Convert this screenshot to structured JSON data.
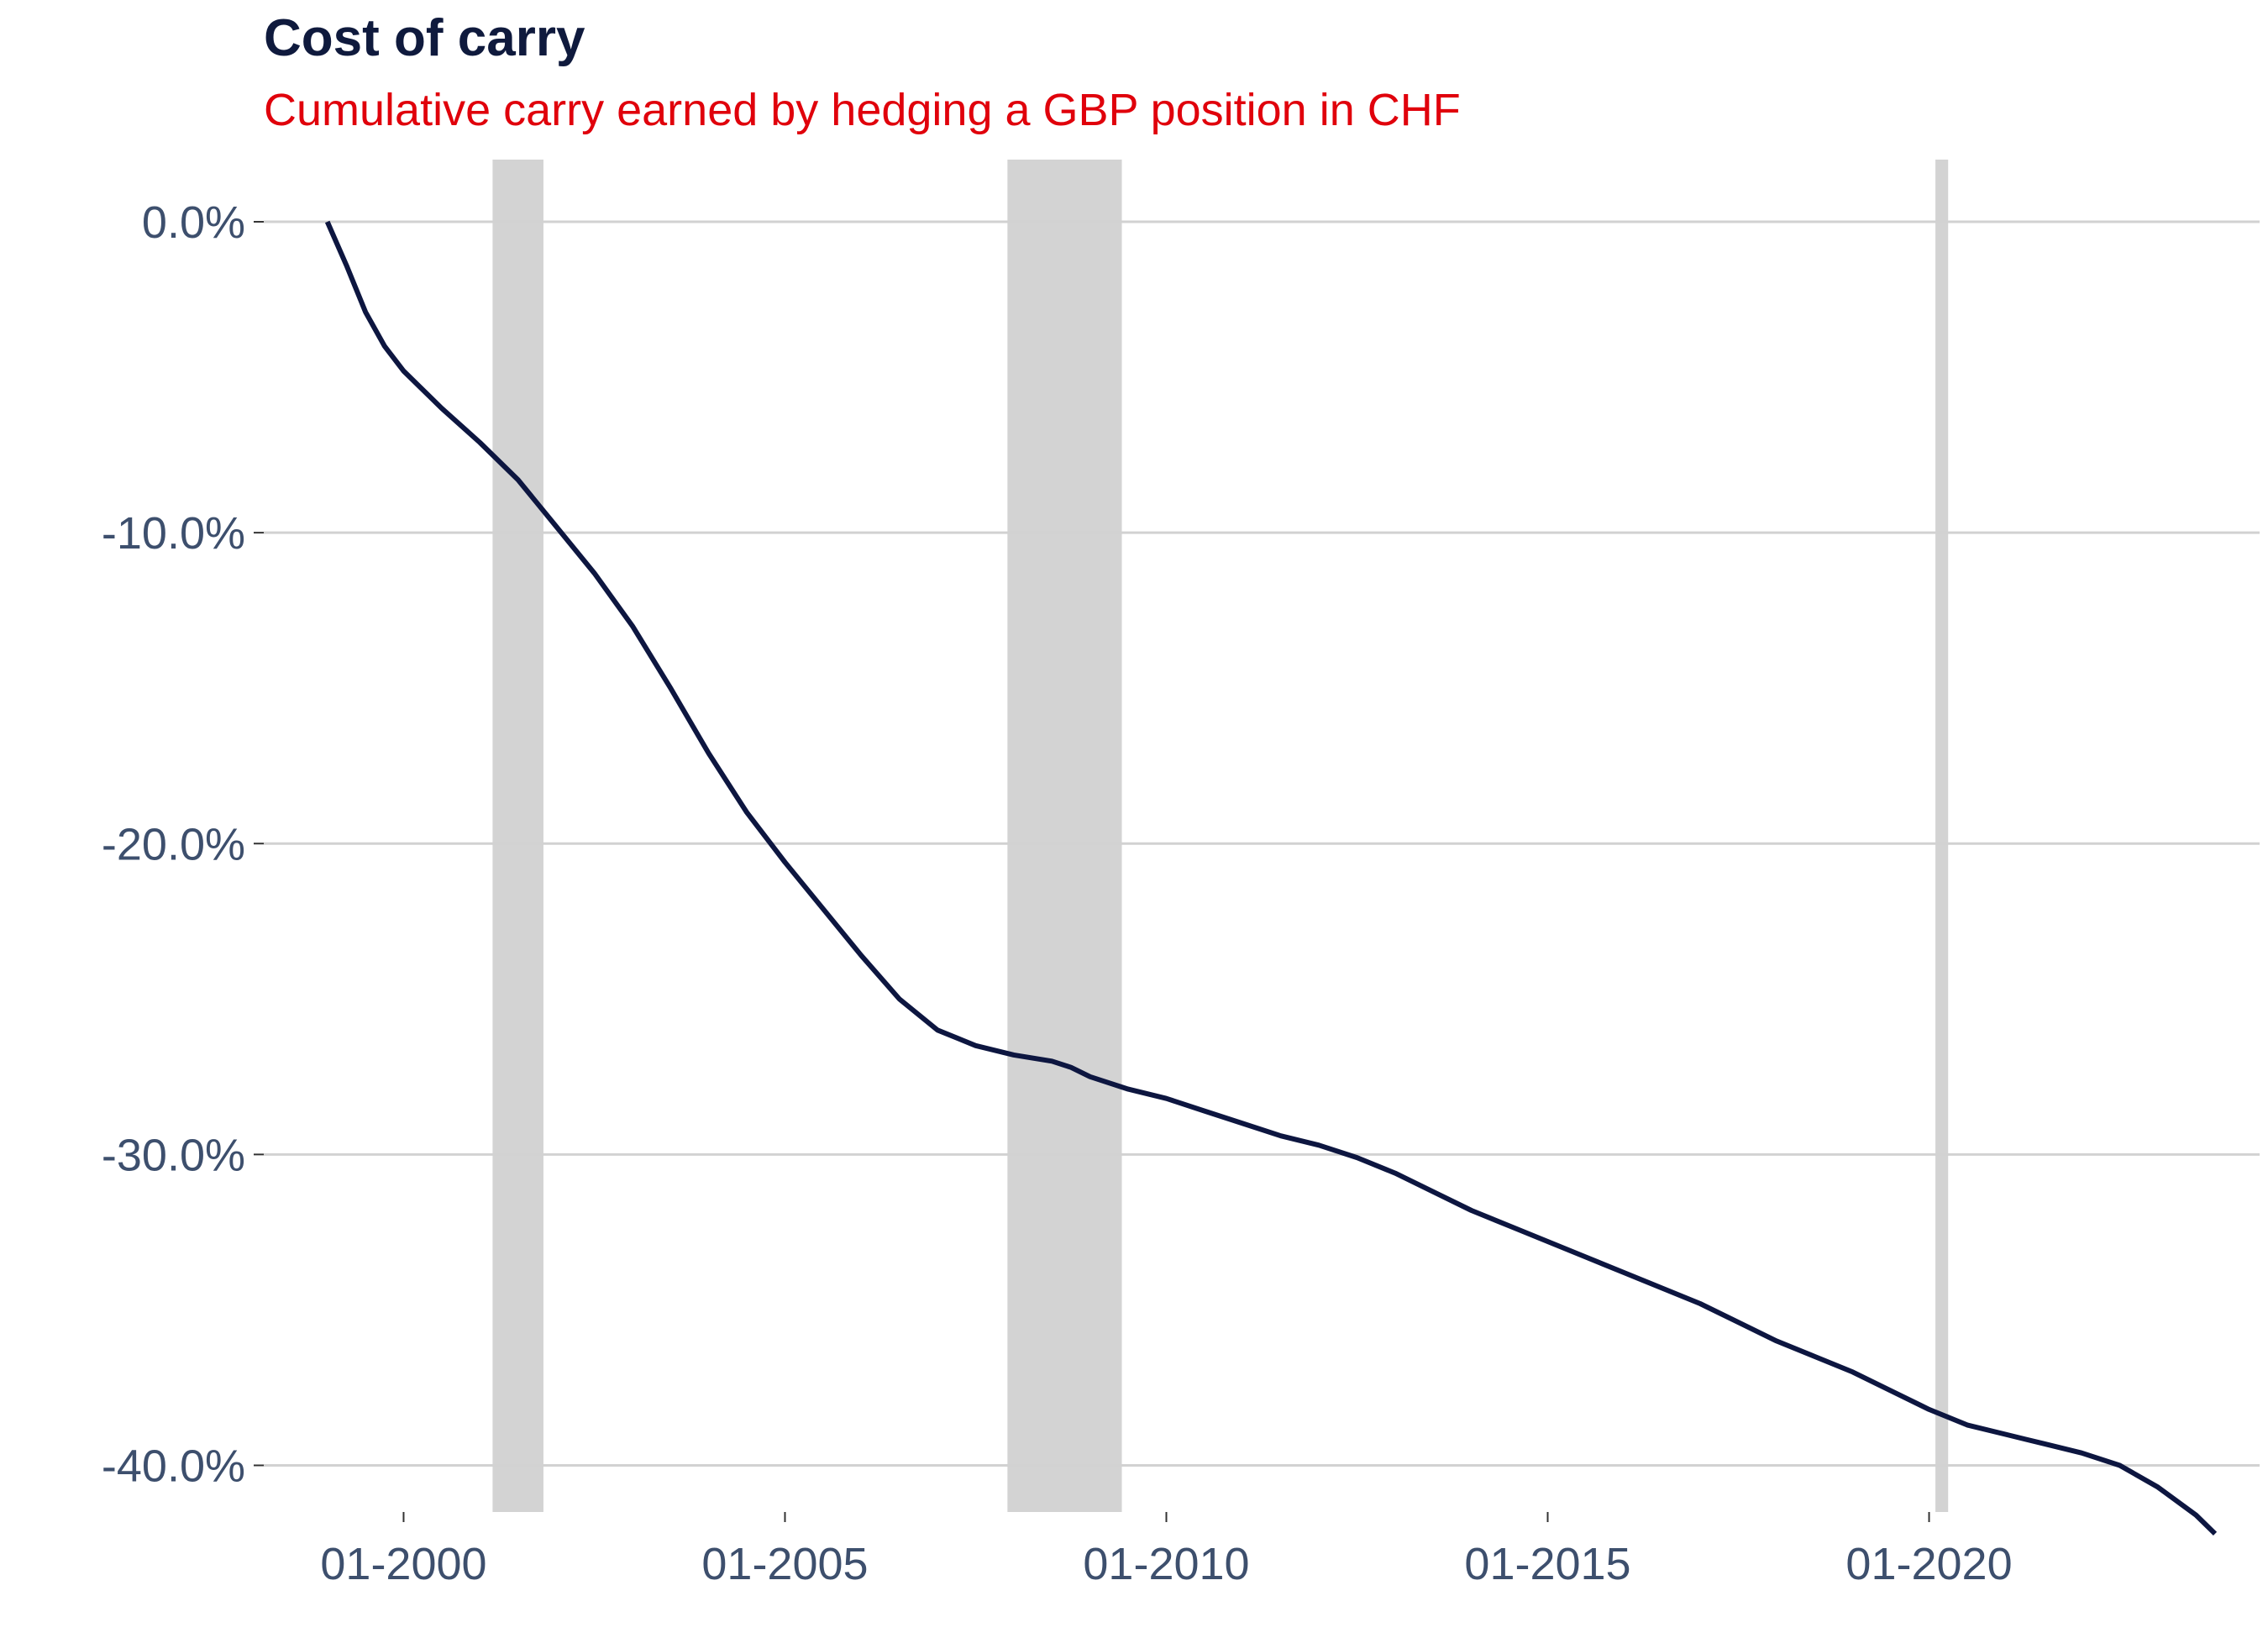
{
  "chart_data": {
    "type": "line",
    "title": "Cost of carry",
    "subtitle": "Cumulative carry earned by hedging a GBP position in CHF",
    "xlabel": "",
    "ylabel": "",
    "xlim": [
      "1998-03-01",
      "2024-05-01"
    ],
    "ylim": [
      -41.5,
      2.0
    ],
    "x_ticks": [
      {
        "date": "2000-01-01",
        "label": "01-2000"
      },
      {
        "date": "2005-01-01",
        "label": "01-2005"
      },
      {
        "date": "2010-01-01",
        "label": "01-2010"
      },
      {
        "date": "2015-01-01",
        "label": "01-2015"
      },
      {
        "date": "2020-01-01",
        "label": "01-2020"
      }
    ],
    "y_ticks": [
      {
        "value": 0,
        "label": "0.0%"
      },
      {
        "value": -10,
        "label": "-10.0%"
      },
      {
        "value": -20,
        "label": "-20.0%"
      },
      {
        "value": -30,
        "label": "-30.0%"
      },
      {
        "value": -40,
        "label": "-40.0%"
      }
    ],
    "grid": "horizontal",
    "legend": "none",
    "shaded_periods": [
      {
        "start": "2001-03-01",
        "end": "2001-11-01"
      },
      {
        "start": "2007-12-01",
        "end": "2009-06-01"
      },
      {
        "start": "2020-02-01",
        "end": "2020-04-01"
      }
    ],
    "series": [
      {
        "color": "#0d1640",
        "x": [
          "1999-01-01",
          "1999-04-01",
          "1999-07-01",
          "1999-10-01",
          "2000-01-01",
          "2000-07-01",
          "2001-01-01",
          "2001-07-01",
          "2002-01-01",
          "2002-07-01",
          "2003-01-01",
          "2003-07-01",
          "2004-01-01",
          "2004-07-01",
          "2005-01-01",
          "2005-07-01",
          "2006-01-01",
          "2006-07-01",
          "2007-01-01",
          "2007-07-01",
          "2008-01-01",
          "2008-07-01",
          "2008-10-01",
          "2009-01-01",
          "2009-07-01",
          "2010-01-01",
          "2010-07-01",
          "2011-01-01",
          "2011-07-01",
          "2012-01-01",
          "2012-07-01",
          "2013-01-01",
          "2013-07-01",
          "2014-01-01",
          "2014-07-01",
          "2015-01-01",
          "2015-07-01",
          "2016-01-01",
          "2016-07-01",
          "2017-01-01",
          "2017-07-01",
          "2018-01-01",
          "2018-07-01",
          "2019-01-01",
          "2019-07-01",
          "2020-01-01",
          "2020-07-01",
          "2021-01-01",
          "2021-07-01",
          "2022-01-01",
          "2022-07-01",
          "2023-01-01",
          "2023-07-01",
          "2023-10-01"
        ],
        "values": [
          0.0,
          -1.4,
          -2.9,
          -4.0,
          -4.8,
          -6.0,
          -7.1,
          -8.3,
          -9.8,
          -11.3,
          -13.0,
          -15.0,
          -17.1,
          -19.0,
          -20.6,
          -22.1,
          -23.6,
          -25.0,
          -26.0,
          -26.5,
          -26.8,
          -27.0,
          -27.2,
          -27.5,
          -27.9,
          -28.2,
          -28.6,
          -29.0,
          -29.4,
          -29.7,
          -30.1,
          -30.6,
          -31.2,
          -31.8,
          -32.3,
          -32.8,
          -33.3,
          -33.8,
          -34.3,
          -34.8,
          -35.4,
          -36.0,
          -36.5,
          -37.0,
          -37.6,
          -38.2,
          -38.7,
          -39.0,
          -39.3,
          -39.6,
          -40.0,
          -40.7,
          -41.6,
          -42.2
        ]
      }
    ]
  }
}
